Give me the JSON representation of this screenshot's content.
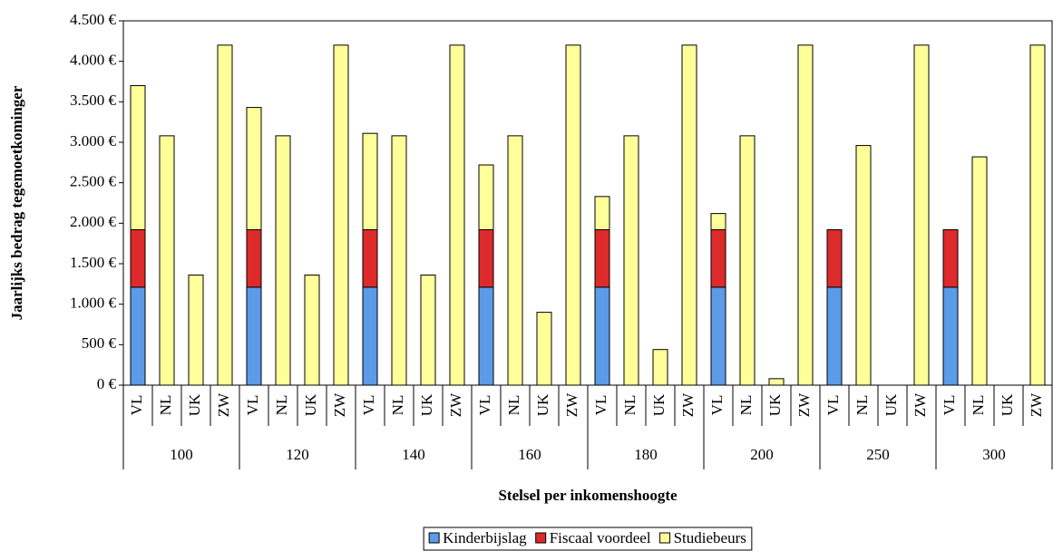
{
  "chart_data": {
    "type": "stacked-bar",
    "y_label": "Jaarlijks bedrag tegemoetkominger",
    "x_label": "Stelsel per inkomenshoogte",
    "groups": [
      "100",
      "120",
      "140",
      "160",
      "180",
      "200",
      "250",
      "300"
    ],
    "categories": [
      "VL",
      "NL",
      "UK",
      "ZW",
      "VL",
      "NL",
      "UK",
      "ZW",
      "VL",
      "NL",
      "UK",
      "ZW",
      "VL",
      "NL",
      "UK",
      "ZW",
      "VL",
      "NL",
      "UK",
      "ZW",
      "VL",
      "NL",
      "UK",
      "ZW",
      "VL",
      "NL",
      "UK",
      "ZW",
      "VL",
      "NL",
      "UK",
      "ZW"
    ],
    "series": [
      {
        "name": "Kinderbijslag",
        "color": "#5b9be8",
        "values": [
          1210,
          0,
          0,
          0,
          1210,
          0,
          0,
          0,
          1210,
          0,
          0,
          0,
          1210,
          0,
          0,
          0,
          1210,
          0,
          0,
          0,
          1210,
          0,
          0,
          0,
          1210,
          0,
          0,
          0,
          1210,
          0,
          0,
          0
        ]
      },
      {
        "name": "Fiscaal voordeel",
        "color": "#dd2a2a",
        "values": [
          710,
          0,
          0,
          0,
          710,
          0,
          0,
          0,
          710,
          0,
          0,
          0,
          710,
          0,
          0,
          0,
          710,
          0,
          0,
          0,
          710,
          0,
          0,
          0,
          710,
          0,
          0,
          0,
          710,
          0,
          0,
          0
        ]
      },
      {
        "name": "Studiebeurs",
        "color": "#ffff99",
        "values": [
          1780,
          3080,
          1360,
          4200,
          1510,
          3080,
          1360,
          4200,
          1190,
          3080,
          1360,
          4200,
          800,
          3080,
          900,
          4200,
          410,
          3080,
          440,
          4200,
          200,
          3080,
          80,
          4200,
          0,
          2960,
          0,
          4200,
          0,
          2820,
          0,
          4200
        ]
      }
    ],
    "ylim": [
      0,
      4500
    ],
    "yticks": [
      {
        "value": 0,
        "label": "0 €"
      },
      {
        "value": 500,
        "label": "500 €"
      },
      {
        "value": 1000,
        "label": "1.000 €"
      },
      {
        "value": 1500,
        "label": "1.500 €"
      },
      {
        "value": 2000,
        "label": "2.000 €"
      },
      {
        "value": 2500,
        "label": "2.500 €"
      },
      {
        "value": 3000,
        "label": "3.000 €"
      },
      {
        "value": 3500,
        "label": "3.500 €"
      },
      {
        "value": 4000,
        "label": "4.000 €"
      },
      {
        "value": 4500,
        "label": "4.500 €"
      }
    ],
    "legend": "bottom"
  }
}
